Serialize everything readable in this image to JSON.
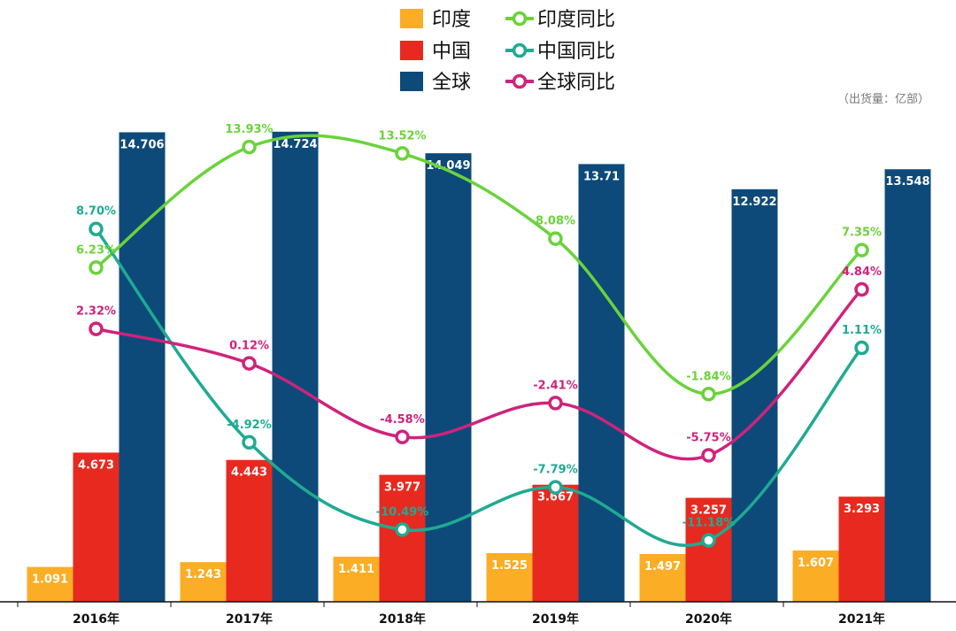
{
  "unit_note": "（出货量：亿部）",
  "colors": {
    "india": "#fbad25",
    "china": "#e8291f",
    "global": "#0d4a7a",
    "india_yoy": "#6ad33a",
    "china_yoy": "#1faa93",
    "global_yoy": "#cf237b",
    "axis": "#111111"
  },
  "chart_data": {
    "type": "bar",
    "categories": [
      "2016年",
      "2017年",
      "2018年",
      "2019年",
      "2020年",
      "2021年"
    ],
    "series": [
      {
        "name": "印度",
        "kind": "bar",
        "color": "#fbad25",
        "values": [
          1.091,
          1.243,
          1.411,
          1.525,
          1.497,
          1.607
        ],
        "labels": [
          "1.091",
          "1.243",
          "1.411",
          "1.525",
          "1.497",
          "1.607"
        ]
      },
      {
        "name": "中国",
        "kind": "bar",
        "color": "#e8291f",
        "values": [
          4.673,
          4.443,
          3.977,
          3.667,
          3.257,
          3.293
        ],
        "labels": [
          "4.673",
          "4.443",
          "3.977",
          "3.667",
          "3.257",
          "3.293"
        ]
      },
      {
        "name": "全球",
        "kind": "bar",
        "color": "#0d4a7a",
        "values": [
          14.706,
          14.724,
          14.049,
          13.71,
          12.922,
          13.548
        ],
        "labels": [
          "14.706",
          "14.724",
          "14.049",
          "13.71",
          "12.922",
          "13.548"
        ]
      },
      {
        "name": "印度同比",
        "kind": "line",
        "color": "#6ad33a",
        "values": [
          6.23,
          13.93,
          13.52,
          8.08,
          -1.84,
          7.35
        ],
        "labels": [
          "6.23%",
          "13.93%",
          "13.52%",
          "8.08%",
          "-1.84%",
          "7.35%"
        ]
      },
      {
        "name": "中国同比",
        "kind": "line",
        "color": "#1faa93",
        "values": [
          8.7,
          -4.92,
          -10.49,
          -7.79,
          -11.18,
          1.11
        ],
        "labels": [
          "8.70%",
          "-4.92%",
          "-10.49%",
          "-7.79%",
          "-11.18%",
          "1.11%"
        ]
      },
      {
        "name": "全球同比",
        "kind": "line",
        "color": "#cf237b",
        "values": [
          2.32,
          0.12,
          -4.58,
          -2.41,
          -5.75,
          4.84
        ],
        "labels": [
          "2.32%",
          "0.12%",
          "-4.58%",
          "-2.41%",
          "-5.75%",
          "4.84%"
        ]
      }
    ],
    "bar_axis_range": [
      0,
      15.8
    ],
    "line_axis_range": [
      -15.1,
      17.1
    ],
    "legend_position": "top-center",
    "grid": false
  }
}
